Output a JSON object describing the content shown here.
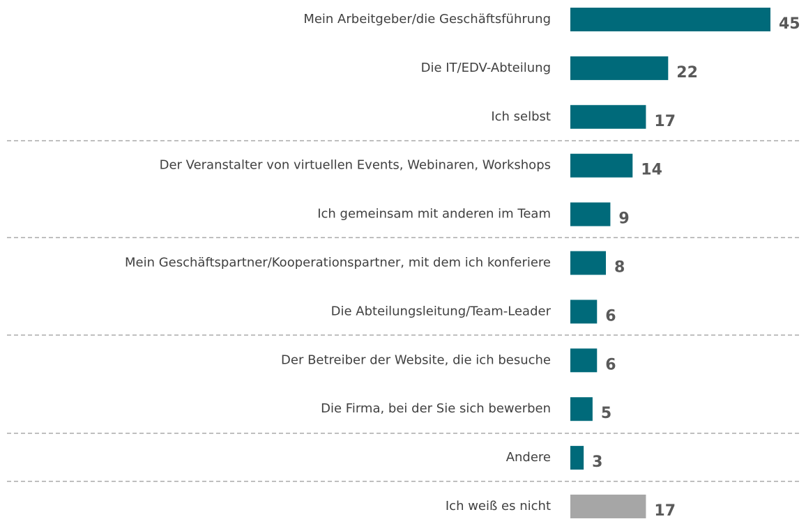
{
  "chart_data": {
    "type": "bar",
    "orientation": "horizontal",
    "categories": [
      "Mein Arbeitgeber/die Geschäftsführung",
      "Die IT/EDV-Abteilung",
      "Ich selbst",
      "Der Veranstalter von virtuellen Events, Webinaren, Workshops",
      "Ich gemeinsam mit anderen im Team",
      "Mein Geschäftspartner/Kooperationspartner, mit dem ich konferiere",
      "Die Abteilungsleitung/Team-Leader",
      "Der Betreiber der Website, die ich besuche",
      "Die Firma, bei der Sie sich bewerben",
      "Andere",
      "Ich weiß es nicht"
    ],
    "values": [
      45,
      22,
      17,
      14,
      9,
      8,
      6,
      6,
      5,
      3,
      17
    ],
    "colors": [
      "#006a7a",
      "#006a7a",
      "#006a7a",
      "#006a7a",
      "#006a7a",
      "#006a7a",
      "#006a7a",
      "#006a7a",
      "#006a7a",
      "#006a7a",
      "#a6a6a6"
    ]
  }
}
